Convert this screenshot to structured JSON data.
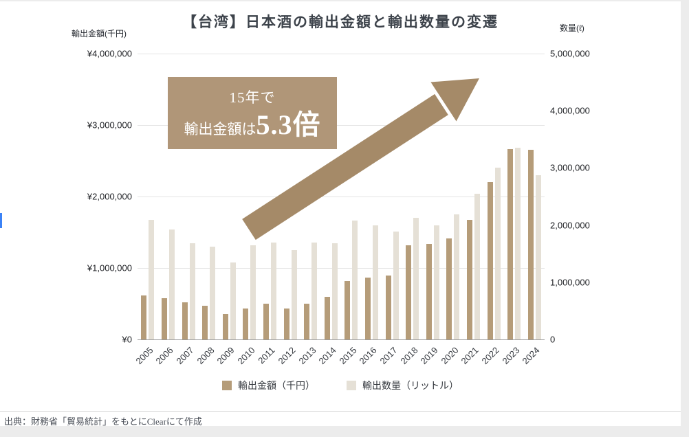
{
  "page": {
    "title": "【台湾】日本酒の輸出金額と輸出数量の変遷",
    "source_note": "出典：財務省「貿易統計」をもとにClearにて作成"
  },
  "annotation": {
    "line1": "15年で",
    "line2_prefix": "輸出金額は",
    "line2_highlight": "5.3倍",
    "bg_color": "#b09678",
    "text_color": "#ffffff"
  },
  "arrow": {
    "color": "#a58a68",
    "direction": "up-right"
  },
  "chart_data": {
    "type": "bar",
    "title": "【台湾】日本酒の輸出金額と輸出数量の変遷",
    "categories": [
      "2005",
      "2006",
      "2007",
      "2008",
      "2009",
      "2010",
      "2011",
      "2012",
      "2013",
      "2014",
      "2015",
      "2016",
      "2017",
      "2018",
      "2019",
      "2020",
      "2021",
      "2022",
      "2023",
      "2024"
    ],
    "series": [
      {
        "name": "輸出金額（千円）",
        "axis": "left",
        "color": "#b59c79",
        "values": [
          620000,
          580000,
          520000,
          470000,
          360000,
          430000,
          500000,
          430000,
          500000,
          600000,
          820000,
          870000,
          890000,
          1320000,
          1340000,
          1410000,
          1670000,
          2200000,
          2660000,
          2650000
        ]
      },
      {
        "name": "輸出数量（リットル）",
        "axis": "right",
        "color": "#e5e0d6",
        "values": [
          2090000,
          1920000,
          1680000,
          1620000,
          1350000,
          1650000,
          1700000,
          1560000,
          1700000,
          1680000,
          2080000,
          2000000,
          1890000,
          2130000,
          2000000,
          2190000,
          2550000,
          3000000,
          3350000,
          2870000
        ]
      }
    ],
    "left_axis": {
      "title": "輸出金額(千円)",
      "min": 0,
      "max": 4000000,
      "tick_labels": [
        "¥0",
        "¥1,000,000",
        "¥2,000,000",
        "¥3,000,000",
        "¥4,000,000"
      ]
    },
    "right_axis": {
      "title": "数量(ℓ)",
      "min": 0,
      "max": 5000000,
      "tick_labels": [
        "0",
        "1,000,000",
        "2,000,000",
        "3,000,000",
        "4,000,000",
        "5,000,000"
      ]
    },
    "grid": true,
    "legend_position": "bottom"
  }
}
